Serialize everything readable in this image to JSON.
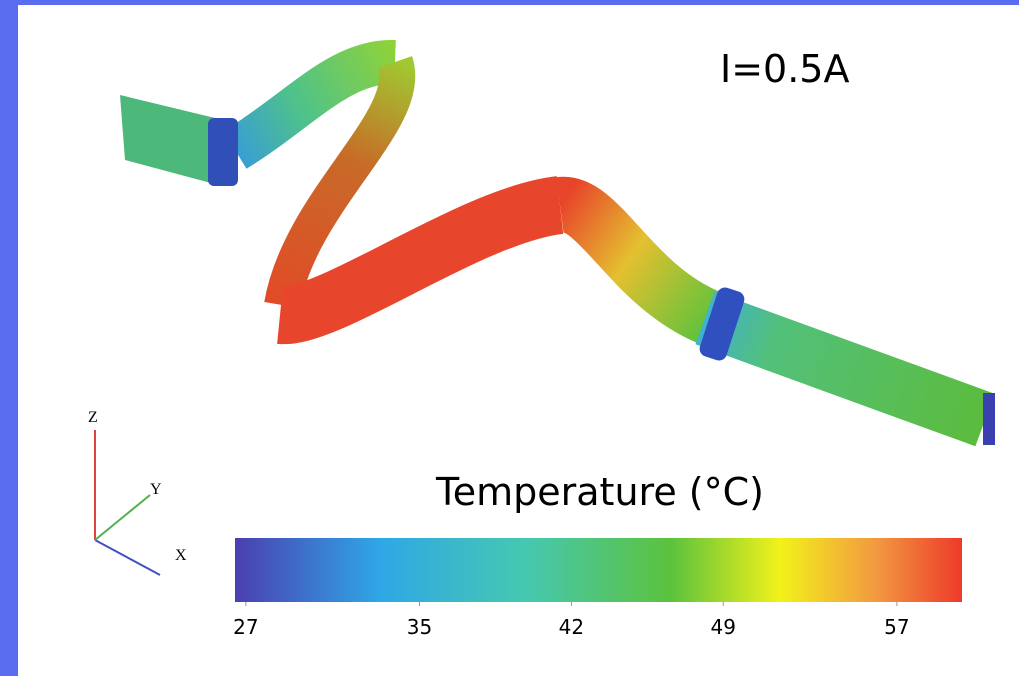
{
  "annotation": "I=0.5A",
  "colorbar": {
    "title": "Temperature (°C)",
    "lim": [
      26.5,
      60
    ],
    "ticks": [
      27,
      35,
      42,
      49,
      57
    ]
  },
  "axes_triad": {
    "z": "Z",
    "y": "Y",
    "x": "X"
  }
}
